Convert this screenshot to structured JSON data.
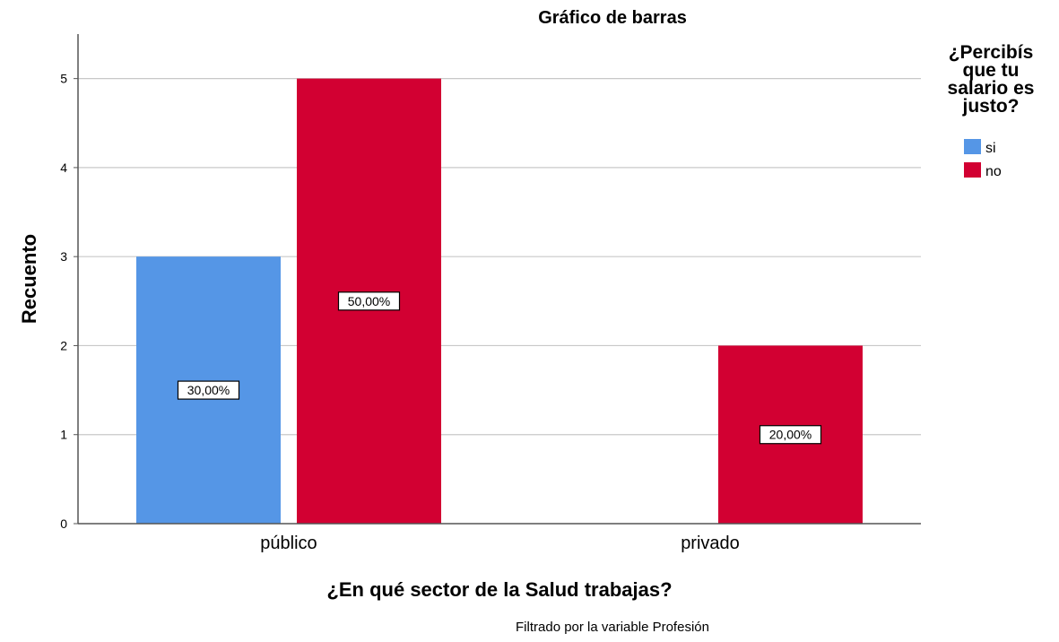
{
  "chart_data": {
    "type": "bar",
    "title": "Gráfico de barras",
    "xlabel": "¿En qué sector de la Salud trabajas?",
    "ylabel": "Recuento",
    "categories": [
      "público",
      "privado"
    ],
    "ylim": [
      0,
      5.5
    ],
    "yticks": [
      0,
      1,
      2,
      3,
      4,
      5
    ],
    "grid": true,
    "legend_title": [
      "¿Percibís",
      "que tu",
      "salario es",
      "justo?"
    ],
    "legend_position": "right",
    "series": [
      {
        "name": "si",
        "color": "#5596E6",
        "values": [
          3,
          0
        ],
        "labels": [
          "30,00%",
          null
        ]
      },
      {
        "name": "no",
        "color": "#D20032",
        "values": [
          5,
          2
        ],
        "labels": [
          "50,00%",
          "20,00%"
        ]
      }
    ],
    "footnote": "Filtrado por la variable Profesión"
  }
}
